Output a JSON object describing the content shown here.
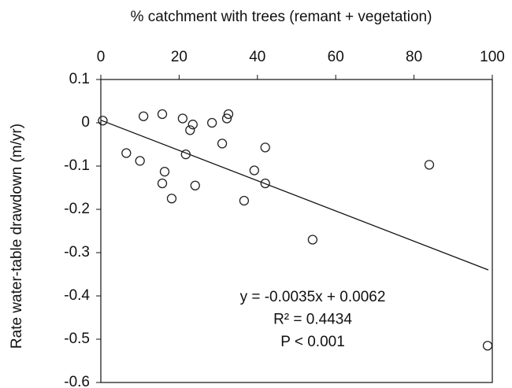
{
  "chart_data": {
    "type": "scatter",
    "title": "% catchment with trees (remant + vegetation)",
    "y_label": "Rate water-table drawdown (m/yr)",
    "x": [
      0.5,
      6.5,
      10,
      10.9,
      15.7,
      15.7,
      16.3,
      18.1,
      20.9,
      21.7,
      22.8,
      23.5,
      24.1,
      28.4,
      31,
      32.2,
      32.6,
      36.6,
      39.2,
      42,
      42,
      54.1,
      83.9,
      98.8
    ],
    "values": [
      0.005,
      -0.07,
      -0.088,
      0.015,
      0.02,
      -0.14,
      -0.113,
      -0.175,
      0.01,
      -0.073,
      -0.017,
      -0.004,
      -0.145,
      0,
      -0.048,
      0.01,
      0.02,
      -0.18,
      -0.11,
      -0.057,
      -0.14,
      -0.27,
      -0.097,
      -0.515
    ],
    "color": "#222222",
    "fit_line": {
      "x": [
        0,
        99
      ],
      "values": [
        0.006,
        -0.34
      ]
    },
    "annotations": [
      "y = -0.0035x + 0.0062",
      "R² = 0.4434",
      "P < 0.001"
    ],
    "xlim": [
      0,
      100
    ],
    "xticks": [
      0,
      20,
      40,
      60,
      80,
      100
    ],
    "ylim": [
      -0.6,
      0.1
    ],
    "yticks": [
      0.1,
      0,
      -0.1,
      -0.2,
      -0.3,
      -0.4,
      -0.5,
      -0.6
    ],
    "x_axis_position": "top"
  }
}
